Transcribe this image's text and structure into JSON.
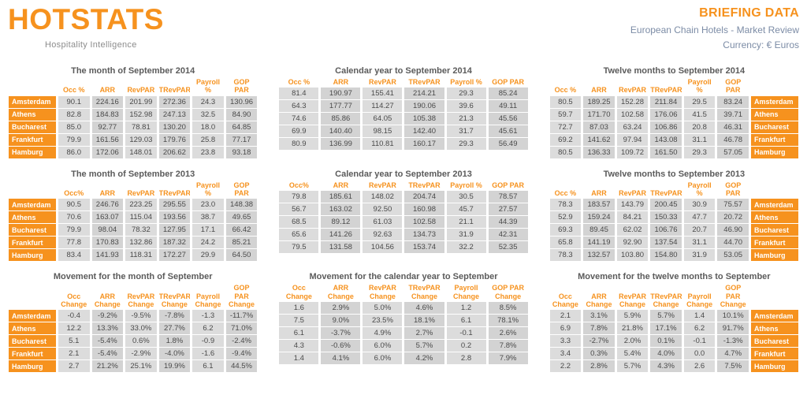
{
  "header": {
    "logo_text": "HOTSTATS",
    "logo_tagline": "Hospitality Intelligence",
    "title": "BRIEFING DATA",
    "subtitle": "European Chain Hotels - Market Review",
    "currency": "Currency: € Euros"
  },
  "colors": {
    "orange": "#F6921E",
    "title_gray": "#5B5B5B",
    "subtitle_slate": "#7C8CA6",
    "cell_light": "#DCDCDC",
    "cell_dark": "#D3D3D3",
    "data_text": "#4A4A4A"
  },
  "cities": [
    "Amsterdam",
    "Athens",
    "Bucharest",
    "Frankfurt",
    "Hamburg"
  ],
  "tables": [
    {
      "title": "The month of September 2014",
      "labels": "left",
      "headers": [
        "Occ %",
        "ARR",
        "RevPAR",
        "TRevPAR",
        "Payroll %",
        "GOP PAR"
      ],
      "rows": [
        [
          "90.1",
          "224.16",
          "201.99",
          "272.36",
          "24.3",
          "130.96"
        ],
        [
          "82.8",
          "184.83",
          "152.98",
          "247.13",
          "32.5",
          "84.90"
        ],
        [
          "85.0",
          "92.77",
          "78.81",
          "130.20",
          "18.0",
          "64.85"
        ],
        [
          "79.9",
          "161.56",
          "129.03",
          "179.76",
          "25.8",
          "77.17"
        ],
        [
          "86.0",
          "172.06",
          "148.01",
          "206.62",
          "23.8",
          "93.18"
        ]
      ]
    },
    {
      "title": "Calendar year to September 2014",
      "labels": "none",
      "headers": [
        "Occ %",
        "ARR",
        "RevPAR",
        "TRevPAR",
        "Payroll %",
        "GOP PAR"
      ],
      "rows": [
        [
          "81.4",
          "190.97",
          "155.41",
          "214.21",
          "29.3",
          "85.24"
        ],
        [
          "64.3",
          "177.77",
          "114.27",
          "190.06",
          "39.6",
          "49.11"
        ],
        [
          "74.6",
          "85.86",
          "64.05",
          "105.38",
          "21.3",
          "45.56"
        ],
        [
          "69.9",
          "140.40",
          "98.15",
          "142.40",
          "31.7",
          "45.61"
        ],
        [
          "80.9",
          "136.99",
          "110.81",
          "160.17",
          "29.3",
          "56.49"
        ]
      ]
    },
    {
      "title": "Twelve months to September 2014",
      "labels": "right",
      "headers": [
        "Occ %",
        "ARR",
        "RevPAR",
        "TRevPAR",
        "Payroll %",
        "GOP PAR"
      ],
      "rows": [
        [
          "80.5",
          "189.25",
          "152.28",
          "211.84",
          "29.5",
          "83.24"
        ],
        [
          "59.7",
          "171.70",
          "102.58",
          "176.06",
          "41.5",
          "39.71"
        ],
        [
          "72.7",
          "87.03",
          "63.24",
          "106.86",
          "20.8",
          "46.31"
        ],
        [
          "69.2",
          "141.62",
          "97.94",
          "143.08",
          "31.1",
          "46.78"
        ],
        [
          "80.5",
          "136.33",
          "109.72",
          "161.50",
          "29.3",
          "57.05"
        ]
      ]
    },
    {
      "title": "The month of September 2013",
      "labels": "left",
      "headers": [
        "Occ%",
        "ARR",
        "RevPAR",
        "TRevPAR",
        "Payroll %",
        "GOP PAR"
      ],
      "rows": [
        [
          "90.5",
          "246.76",
          "223.25",
          "295.55",
          "23.0",
          "148.38"
        ],
        [
          "70.6",
          "163.07",
          "115.04",
          "193.56",
          "38.7",
          "49.65"
        ],
        [
          "79.9",
          "98.04",
          "78.32",
          "127.95",
          "17.1",
          "66.42"
        ],
        [
          "77.8",
          "170.83",
          "132.86",
          "187.32",
          "24.2",
          "85.21"
        ],
        [
          "83.4",
          "141.93",
          "118.31",
          "172.27",
          "29.9",
          "64.50"
        ]
      ]
    },
    {
      "title": "Calendar year to September 2013",
      "labels": "none",
      "headers": [
        "Occ%",
        "ARR",
        "RevPAR",
        "TRevPAR",
        "Payroll %",
        "GOP PAR"
      ],
      "rows": [
        [
          "79.8",
          "185.61",
          "148.02",
          "204.74",
          "30.5",
          "78.57"
        ],
        [
          "56.7",
          "163.02",
          "92.50",
          "160.98",
          "45.7",
          "27.57"
        ],
        [
          "68.5",
          "89.12",
          "61.03",
          "102.58",
          "21.1",
          "44.39"
        ],
        [
          "65.6",
          "141.26",
          "92.63",
          "134.73",
          "31.9",
          "42.31"
        ],
        [
          "79.5",
          "131.58",
          "104.56",
          "153.74",
          "32.2",
          "52.35"
        ]
      ]
    },
    {
      "title": "Twelve months to September 2013",
      "labels": "right",
      "headers": [
        "Occ %",
        "ARR",
        "RevPAR",
        "TRevPAR",
        "Payroll %",
        "GOP PAR"
      ],
      "rows": [
        [
          "78.3",
          "183.57",
          "143.79",
          "200.45",
          "30.9",
          "75.57"
        ],
        [
          "52.9",
          "159.24",
          "84.21",
          "150.33",
          "47.7",
          "20.72"
        ],
        [
          "69.3",
          "89.45",
          "62.02",
          "106.76",
          "20.7",
          "46.90"
        ],
        [
          "65.8",
          "141.19",
          "92.90",
          "137.54",
          "31.1",
          "44.70"
        ],
        [
          "78.3",
          "132.57",
          "103.80",
          "154.80",
          "31.9",
          "53.05"
        ]
      ]
    },
    {
      "title": "Movement for the month of September",
      "labels": "left",
      "headers": [
        "Occ Change",
        "ARR Change",
        "RevPAR Change",
        "TRevPAR Change",
        "Payroll Change",
        "GOP PAR Change"
      ],
      "rows": [
        [
          "-0.4",
          "-9.2%",
          "-9.5%",
          "-7.8%",
          "-1.3",
          "-11.7%"
        ],
        [
          "12.2",
          "13.3%",
          "33.0%",
          "27.7%",
          "6.2",
          "71.0%"
        ],
        [
          "5.1",
          "-5.4%",
          "0.6%",
          "1.8%",
          "-0.9",
          "-2.4%"
        ],
        [
          "2.1",
          "-5.4%",
          "-2.9%",
          "-4.0%",
          "-1.6",
          "-9.4%"
        ],
        [
          "2.7",
          "21.2%",
          "25.1%",
          "19.9%",
          "6.1",
          "44.5%"
        ]
      ]
    },
    {
      "title": "Movement for the calendar year to September",
      "labels": "none",
      "headers": [
        "Occ Change",
        "ARR Change",
        "RevPAR Change",
        "TRevPAR Change",
        "Payroll Change",
        "GOP PAR Change"
      ],
      "rows": [
        [
          "1.6",
          "2.9%",
          "5.0%",
          "4.6%",
          "1.2",
          "8.5%"
        ],
        [
          "7.5",
          "9.0%",
          "23.5%",
          "18.1%",
          "6.1",
          "78.1%"
        ],
        [
          "6.1",
          "-3.7%",
          "4.9%",
          "2.7%",
          "-0.1",
          "2.6%"
        ],
        [
          "4.3",
          "-0.6%",
          "6.0%",
          "5.7%",
          "0.2",
          "7.8%"
        ],
        [
          "1.4",
          "4.1%",
          "6.0%",
          "4.2%",
          "2.8",
          "7.9%"
        ]
      ]
    },
    {
      "title": "Movement for the twelve months to September",
      "labels": "right",
      "headers": [
        "Occ Change",
        "ARR Change",
        "RevPAR Change",
        "TRevPAR Change",
        "Payroll Change",
        "GOP PAR Change"
      ],
      "rows": [
        [
          "2.1",
          "3.1%",
          "5.9%",
          "5.7%",
          "1.4",
          "10.1%"
        ],
        [
          "6.9",
          "7.8%",
          "21.8%",
          "17.1%",
          "6.2",
          "91.7%"
        ],
        [
          "3.3",
          "-2.7%",
          "2.0%",
          "0.1%",
          "-0.1",
          "-1.3%"
        ],
        [
          "3.4",
          "0.3%",
          "5.4%",
          "4.0%",
          "0.0",
          "4.7%"
        ],
        [
          "2.2",
          "2.8%",
          "5.7%",
          "4.3%",
          "2.6",
          "7.5%"
        ]
      ]
    }
  ]
}
